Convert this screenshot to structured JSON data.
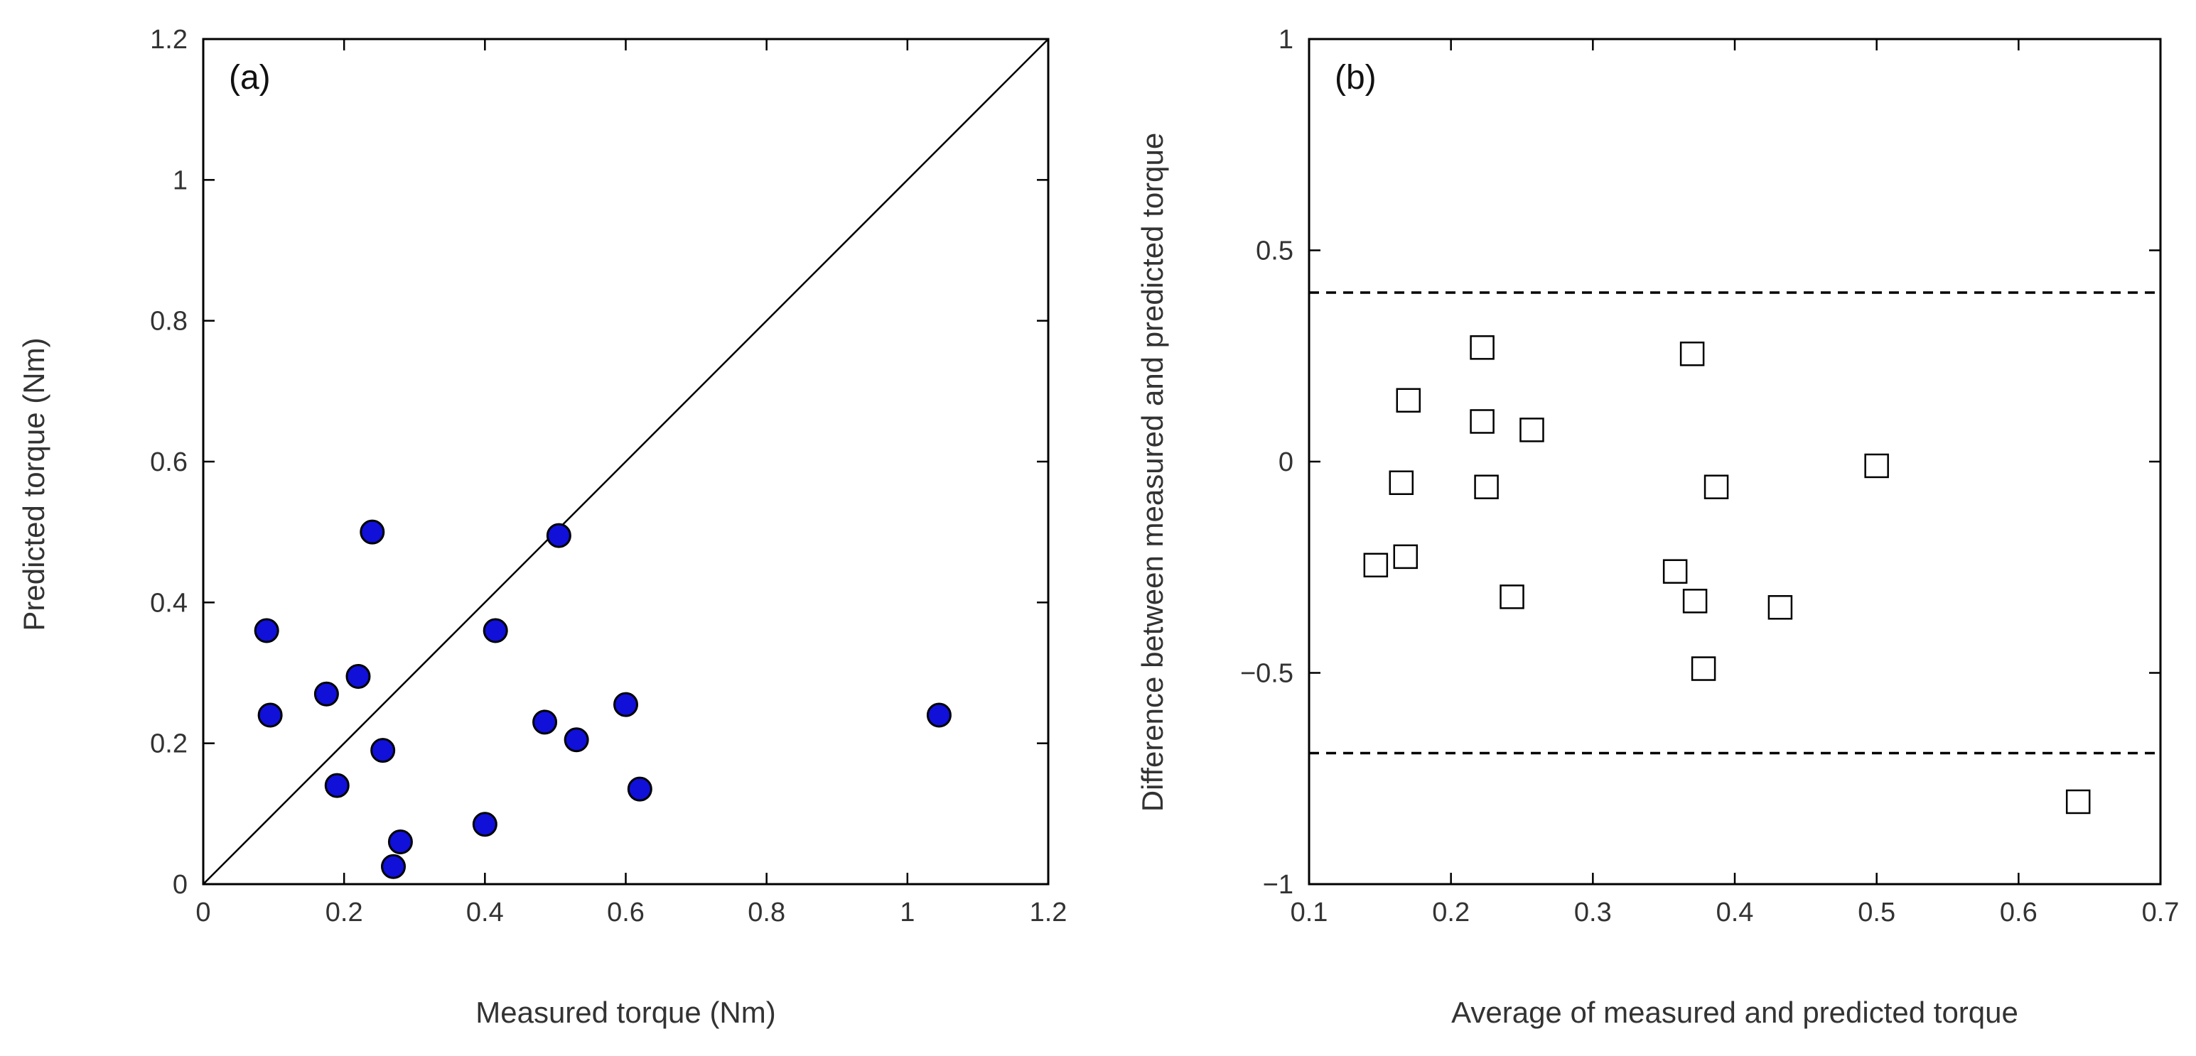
{
  "chart_data": [
    {
      "type": "scatter",
      "panel_label": "(a)",
      "title": "",
      "xlabel": "Measured torque (Nm)",
      "ylabel": "Predicted torque (Nm)",
      "xlim": [
        0,
        1.2
      ],
      "ylim": [
        0,
        1.2
      ],
      "xticks": [
        0,
        0.2,
        0.4,
        0.6,
        0.8,
        1,
        1.2
      ],
      "xtick_labels": [
        "0",
        "0.2",
        "0.4",
        "0.6",
        "0.8",
        "1",
        "1.2"
      ],
      "yticks": [
        0,
        0.2,
        0.4,
        0.6,
        0.8,
        1,
        1.2
      ],
      "ytick_labels": [
        "0",
        "0.2",
        "0.4",
        "0.6",
        "0.8",
        "1",
        "1.2"
      ],
      "grid": false,
      "reference_line": {
        "type": "identity",
        "from": [
          0,
          0
        ],
        "to": [
          1.2,
          1.2
        ]
      },
      "marker": {
        "shape": "filled-circle",
        "fill": "#1010d8",
        "stroke": "#000000"
      },
      "points": [
        {
          "x": 0.09,
          "y": 0.36
        },
        {
          "x": 0.095,
          "y": 0.24
        },
        {
          "x": 0.175,
          "y": 0.27
        },
        {
          "x": 0.19,
          "y": 0.14
        },
        {
          "x": 0.22,
          "y": 0.295
        },
        {
          "x": 0.24,
          "y": 0.5
        },
        {
          "x": 0.255,
          "y": 0.19
        },
        {
          "x": 0.27,
          "y": 0.025
        },
        {
          "x": 0.28,
          "y": 0.06
        },
        {
          "x": 0.4,
          "y": 0.085
        },
        {
          "x": 0.415,
          "y": 0.36
        },
        {
          "x": 0.485,
          "y": 0.23
        },
        {
          "x": 0.505,
          "y": 0.495
        },
        {
          "x": 0.53,
          "y": 0.205
        },
        {
          "x": 0.6,
          "y": 0.255
        },
        {
          "x": 0.62,
          "y": 0.135
        },
        {
          "x": 1.045,
          "y": 0.24
        }
      ]
    },
    {
      "type": "scatter",
      "panel_label": "(b)",
      "title": "",
      "xlabel": "Average of measured and predicted torque",
      "ylabel": "Difference between measured and predicted torque",
      "xlim": [
        0.1,
        0.7
      ],
      "ylim": [
        -1,
        1
      ],
      "xticks": [
        0.1,
        0.2,
        0.3,
        0.4,
        0.5,
        0.6,
        0.7
      ],
      "xtick_labels": [
        "0.1",
        "0.2",
        "0.3",
        "0.4",
        "0.5",
        "0.6",
        "0.7"
      ],
      "yticks": [
        -1,
        -0.5,
        0,
        0.5,
        1
      ],
      "ytick_labels": [
        "−1",
        "−0.5",
        "0",
        "0.5",
        "1"
      ],
      "grid": false,
      "reference_lines": [
        {
          "type": "horizontal-dashed",
          "y": 0.4
        },
        {
          "type": "horizontal-dashed",
          "y": -0.69
        }
      ],
      "marker": {
        "shape": "open-square",
        "fill": "none",
        "stroke": "#000000"
      },
      "points": [
        {
          "x": 0.147,
          "y": -0.245
        },
        {
          "x": 0.165,
          "y": -0.05
        },
        {
          "x": 0.168,
          "y": -0.225
        },
        {
          "x": 0.17,
          "y": 0.145
        },
        {
          "x": 0.222,
          "y": 0.27
        },
        {
          "x": 0.222,
          "y": 0.095
        },
        {
          "x": 0.225,
          "y": -0.06
        },
        {
          "x": 0.243,
          "y": -0.32
        },
        {
          "x": 0.257,
          "y": 0.075
        },
        {
          "x": 0.358,
          "y": -0.26
        },
        {
          "x": 0.37,
          "y": 0.255
        },
        {
          "x": 0.372,
          "y": -0.33
        },
        {
          "x": 0.378,
          "y": -0.49
        },
        {
          "x": 0.387,
          "y": -0.06
        },
        {
          "x": 0.432,
          "y": -0.345
        },
        {
          "x": 0.5,
          "y": -0.01
        },
        {
          "x": 0.642,
          "y": -0.805
        }
      ]
    }
  ]
}
